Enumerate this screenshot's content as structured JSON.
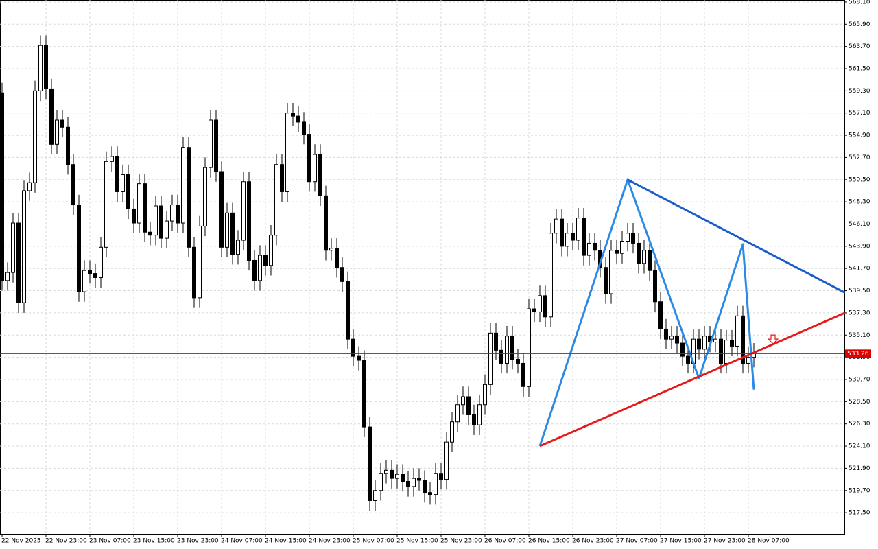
{
  "chart_data": {
    "type": "candlestick",
    "categories": [
      "22 Nov 2025",
      null,
      null,
      null,
      null,
      null,
      null,
      null,
      "22 Nov 23:00",
      null,
      null,
      null,
      null,
      null,
      null,
      null,
      "23 Nov 07:00",
      null,
      null,
      null,
      null,
      null,
      null,
      null,
      "23 Nov 15:00",
      null,
      null,
      null,
      null,
      null,
      null,
      null,
      "23 Nov 23:00",
      null,
      null,
      null,
      null,
      null,
      null,
      null,
      "24 Nov 07:00",
      null,
      null,
      null,
      null,
      null,
      null,
      null,
      "24 Nov 15:00",
      null,
      null,
      null,
      null,
      null,
      null,
      null,
      "24 Nov 23:00",
      null,
      null,
      null,
      null,
      null,
      null,
      null,
      "25 Nov 07:00",
      null,
      null,
      null,
      null,
      null,
      null,
      null,
      "25 Nov 15:00",
      null,
      null,
      null,
      null,
      null,
      null,
      null,
      "25 Nov 23:00",
      null,
      null,
      null,
      null,
      null,
      null,
      null,
      "26 Nov 07:00",
      null,
      null,
      null,
      null,
      null,
      null,
      null,
      "26 Nov 15:00",
      null,
      null,
      null,
      null,
      null,
      null,
      null,
      "26 Nov 23:00",
      null,
      null,
      null,
      null,
      null,
      null,
      null,
      "27 Nov 07:00",
      null,
      null,
      null,
      null,
      null,
      null,
      null,
      "27 Nov 15:00",
      null,
      null,
      null,
      null,
      null,
      null,
      null,
      "27 Nov 23:00",
      null,
      null,
      null,
      null,
      null,
      null,
      null,
      "28 Nov 07:00",
      null
    ],
    "open": [
      559.1,
      540.5,
      541.3,
      546.2,
      538.3,
      549.4,
      550.2,
      559.3,
      563.8,
      559.5,
      554.0,
      556.4,
      555.7,
      552.0,
      548.0,
      539.4,
      541.5,
      541.2,
      540.8,
      543.8,
      552.3,
      552.8,
      549.3,
      551.0,
      547.6,
      546.2,
      550.1,
      545.3,
      545.0,
      547.9,
      544.7,
      546.4,
      548.0,
      546.2,
      553.7,
      543.8,
      538.8,
      545.9,
      551.7,
      556.4,
      551.3,
      543.8,
      547.2,
      543.1,
      544.5,
      550.3,
      542.5,
      540.5,
      543.0,
      542.0,
      545.0,
      552.0,
      549.3,
      557.1,
      556.8,
      556.2,
      555.0,
      550.3,
      553.0,
      548.9,
      543.5,
      543.7,
      541.8,
      540.4,
      534.7,
      533.0,
      532.6,
      526.0,
      518.7,
      519.7,
      521.4,
      521.7,
      520.9,
      521.3,
      520.6,
      520.1,
      520.9,
      520.7,
      519.5,
      519.3,
      521.4,
      520.8,
      524.5,
      526.5,
      528.2,
      529.0,
      527.2,
      526.2,
      528.2,
      530.2,
      535.3,
      533.6,
      532.3,
      535.0,
      532.7,
      532.3,
      530.0,
      537.7,
      537.4,
      539.0,
      536.9,
      545.2,
      546.6,
      543.9,
      545.2,
      544.5,
      546.7,
      543.0,
      544.2,
      543.5,
      541.8,
      539.2,
      543.5,
      543.2,
      544.4,
      545.2,
      544.2,
      542.2,
      543.5,
      541.5,
      538.4,
      535.7,
      534.7,
      535.0,
      534.3,
      533.0,
      532.3,
      534.7,
      533.7,
      535.0,
      534.4,
      534.7,
      532.3,
      534.6,
      534.0,
      537.0,
      532.3,
      532.9
    ],
    "high": [
      560.1,
      542.3,
      547.2,
      547.2,
      550.4,
      551.2,
      560.3,
      564.8,
      564.8,
      560.5,
      557.4,
      557.4,
      556.7,
      553.0,
      549.0,
      542.5,
      542.5,
      542.2,
      544.8,
      553.3,
      553.8,
      553.8,
      552.0,
      552.0,
      548.6,
      551.1,
      551.1,
      546.3,
      548.9,
      548.9,
      547.4,
      549.0,
      549.0,
      554.7,
      554.7,
      544.8,
      546.9,
      552.7,
      557.4,
      557.4,
      552.3,
      548.2,
      548.2,
      545.5,
      551.3,
      551.3,
      543.5,
      544.0,
      544.0,
      546.0,
      553.0,
      553.0,
      558.1,
      558.1,
      557.8,
      557.2,
      556.0,
      554.0,
      554.0,
      549.9,
      544.7,
      544.7,
      542.8,
      541.4,
      535.7,
      534.0,
      533.6,
      527.0,
      520.7,
      522.4,
      522.7,
      522.7,
      522.3,
      522.3,
      521.6,
      521.9,
      521.9,
      521.7,
      520.5,
      522.4,
      522.4,
      525.5,
      527.5,
      529.2,
      530.0,
      530.0,
      528.2,
      529.2,
      531.2,
      536.3,
      536.3,
      534.6,
      536.0,
      536.0,
      533.7,
      533.3,
      538.7,
      538.7,
      540.0,
      540.0,
      546.2,
      547.6,
      547.6,
      546.2,
      546.2,
      547.7,
      547.7,
      545.2,
      545.2,
      544.5,
      542.8,
      544.5,
      544.5,
      545.4,
      546.2,
      546.2,
      545.2,
      544.5,
      544.5,
      542.5,
      539.4,
      536.7,
      536.0,
      536.0,
      535.3,
      534.0,
      535.7,
      535.7,
      536.0,
      536.0,
      535.7,
      535.7,
      535.6,
      535.6,
      538.0,
      538.0,
      533.9,
      534.3
    ],
    "low": [
      539.5,
      539.5,
      540.3,
      537.3,
      537.3,
      548.4,
      549.2,
      558.3,
      558.5,
      553.0,
      553.0,
      554.7,
      551.0,
      547.0,
      538.4,
      538.4,
      540.2,
      539.8,
      539.8,
      542.8,
      551.3,
      548.3,
      548.3,
      546.6,
      545.2,
      545.2,
      544.3,
      544.0,
      544.0,
      543.7,
      543.7,
      545.4,
      545.2,
      545.2,
      542.8,
      537.8,
      537.8,
      544.9,
      550.7,
      550.3,
      542.8,
      542.8,
      542.1,
      542.1,
      543.5,
      541.5,
      539.5,
      539.5,
      541.0,
      541.0,
      544.0,
      548.3,
      548.3,
      555.8,
      555.2,
      554.0,
      549.3,
      549.3,
      547.9,
      542.5,
      542.5,
      540.8,
      539.4,
      533.7,
      532.0,
      531.6,
      525.0,
      517.7,
      517.7,
      518.7,
      520.4,
      519.9,
      519.9,
      519.6,
      519.1,
      519.1,
      519.7,
      518.5,
      518.3,
      518.3,
      519.8,
      519.8,
      523.5,
      525.5,
      527.2,
      526.2,
      525.2,
      525.2,
      527.2,
      529.2,
      532.6,
      531.3,
      531.3,
      531.7,
      531.3,
      529.0,
      529.0,
      536.4,
      536.4,
      535.9,
      535.9,
      544.2,
      542.9,
      542.9,
      543.5,
      543.5,
      542.0,
      542.0,
      542.5,
      540.8,
      538.2,
      538.2,
      542.2,
      542.2,
      543.4,
      543.2,
      541.2,
      541.2,
      540.5,
      537.4,
      534.7,
      533.7,
      533.7,
      533.3,
      532.0,
      531.3,
      531.3,
      532.7,
      532.7,
      533.4,
      533.4,
      531.3,
      531.3,
      533.0,
      533.0,
      531.3,
      531.3,
      531.9
    ],
    "close": [
      540.5,
      541.3,
      546.2,
      538.3,
      549.4,
      550.2,
      559.3,
      563.8,
      559.5,
      554.0,
      556.4,
      555.7,
      552.0,
      548.0,
      539.4,
      541.5,
      541.2,
      540.8,
      543.8,
      552.3,
      552.8,
      549.3,
      551.0,
      547.6,
      546.2,
      550.1,
      545.3,
      545.0,
      547.9,
      544.7,
      546.4,
      548.0,
      546.2,
      553.7,
      543.8,
      538.8,
      545.9,
      551.7,
      556.4,
      551.3,
      543.8,
      547.2,
      543.1,
      544.5,
      550.3,
      542.5,
      540.5,
      543.0,
      542.0,
      545.0,
      552.0,
      549.3,
      557.1,
      556.8,
      556.2,
      555.0,
      550.3,
      553.0,
      548.9,
      543.5,
      543.7,
      541.8,
      540.4,
      534.7,
      533.0,
      532.6,
      526.0,
      518.7,
      519.7,
      521.4,
      521.7,
      520.9,
      521.3,
      520.6,
      520.1,
      520.9,
      520.7,
      519.5,
      519.3,
      521.4,
      520.8,
      524.5,
      526.5,
      528.2,
      529.0,
      527.2,
      526.2,
      528.2,
      530.2,
      535.3,
      533.6,
      532.3,
      535.0,
      532.7,
      532.3,
      530.0,
      537.7,
      537.4,
      539.0,
      536.9,
      545.2,
      546.6,
      543.9,
      545.2,
      544.5,
      546.7,
      543.0,
      544.2,
      543.5,
      541.8,
      539.2,
      543.5,
      543.2,
      544.4,
      545.2,
      544.2,
      542.2,
      543.5,
      541.5,
      538.4,
      535.7,
      534.7,
      535.0,
      534.3,
      533.0,
      532.3,
      534.7,
      533.7,
      535.0,
      534.4,
      534.7,
      532.3,
      534.6,
      534.0,
      537.0,
      532.3,
      532.9,
      533.3
    ],
    "ylim": [
      515.4,
      568.3
    ],
    "yticks": [
      {
        "value": 568.1,
        "label": "568.10"
      },
      {
        "value": 565.9,
        "label": "565.90"
      },
      {
        "value": 563.7,
        "label": "563.70"
      },
      {
        "value": 561.5,
        "label": "561.50"
      },
      {
        "value": 559.3,
        "label": "559.30"
      },
      {
        "value": 557.1,
        "label": "557.10"
      },
      {
        "value": 554.9,
        "label": "554.90"
      },
      {
        "value": 552.7,
        "label": "552.70"
      },
      {
        "value": 550.5,
        "label": "550.50"
      },
      {
        "value": 548.3,
        "label": "548.30"
      },
      {
        "value": 546.1,
        "label": "546.10"
      },
      {
        "value": 543.9,
        "label": "543.90"
      },
      {
        "value": 541.7,
        "label": "541.70"
      },
      {
        "value": 539.5,
        "label": "539.50"
      },
      {
        "value": 537.3,
        "label": "537.30"
      },
      {
        "value": 535.1,
        "label": "535.10"
      },
      {
        "value": 532.9,
        "label": "532.90"
      },
      {
        "value": 530.7,
        "label": "530.70"
      },
      {
        "value": 528.5,
        "label": "528.50"
      },
      {
        "value": 526.3,
        "label": "526.30"
      },
      {
        "value": 524.1,
        "label": "524.10"
      },
      {
        "value": 521.9,
        "label": "521.90"
      },
      {
        "value": 519.7,
        "label": "519.70"
      },
      {
        "value": 517.5,
        "label": "517.50"
      }
    ],
    "grid": true,
    "current_price": {
      "value": 533.26,
      "label": "533.26",
      "color": "#e00000"
    },
    "lines": [
      {
        "color": "#2b8ae6",
        "x": [
          98,
          114,
          127,
          135,
          137
        ],
        "y": [
          524.1,
          550.5,
          530.8,
          544.1,
          529.7
        ]
      },
      {
        "color": "#1a5cc8",
        "x": [
          114,
          153.6
        ],
        "y": [
          550.5,
          539.3
        ]
      },
      {
        "color": "#e61a1a",
        "x": [
          98,
          153.6
        ],
        "y": [
          524.1,
          537.3
        ]
      }
    ],
    "arrow": {
      "x": 140.5,
      "y": 534.5,
      "color": "#e61a1a"
    }
  }
}
